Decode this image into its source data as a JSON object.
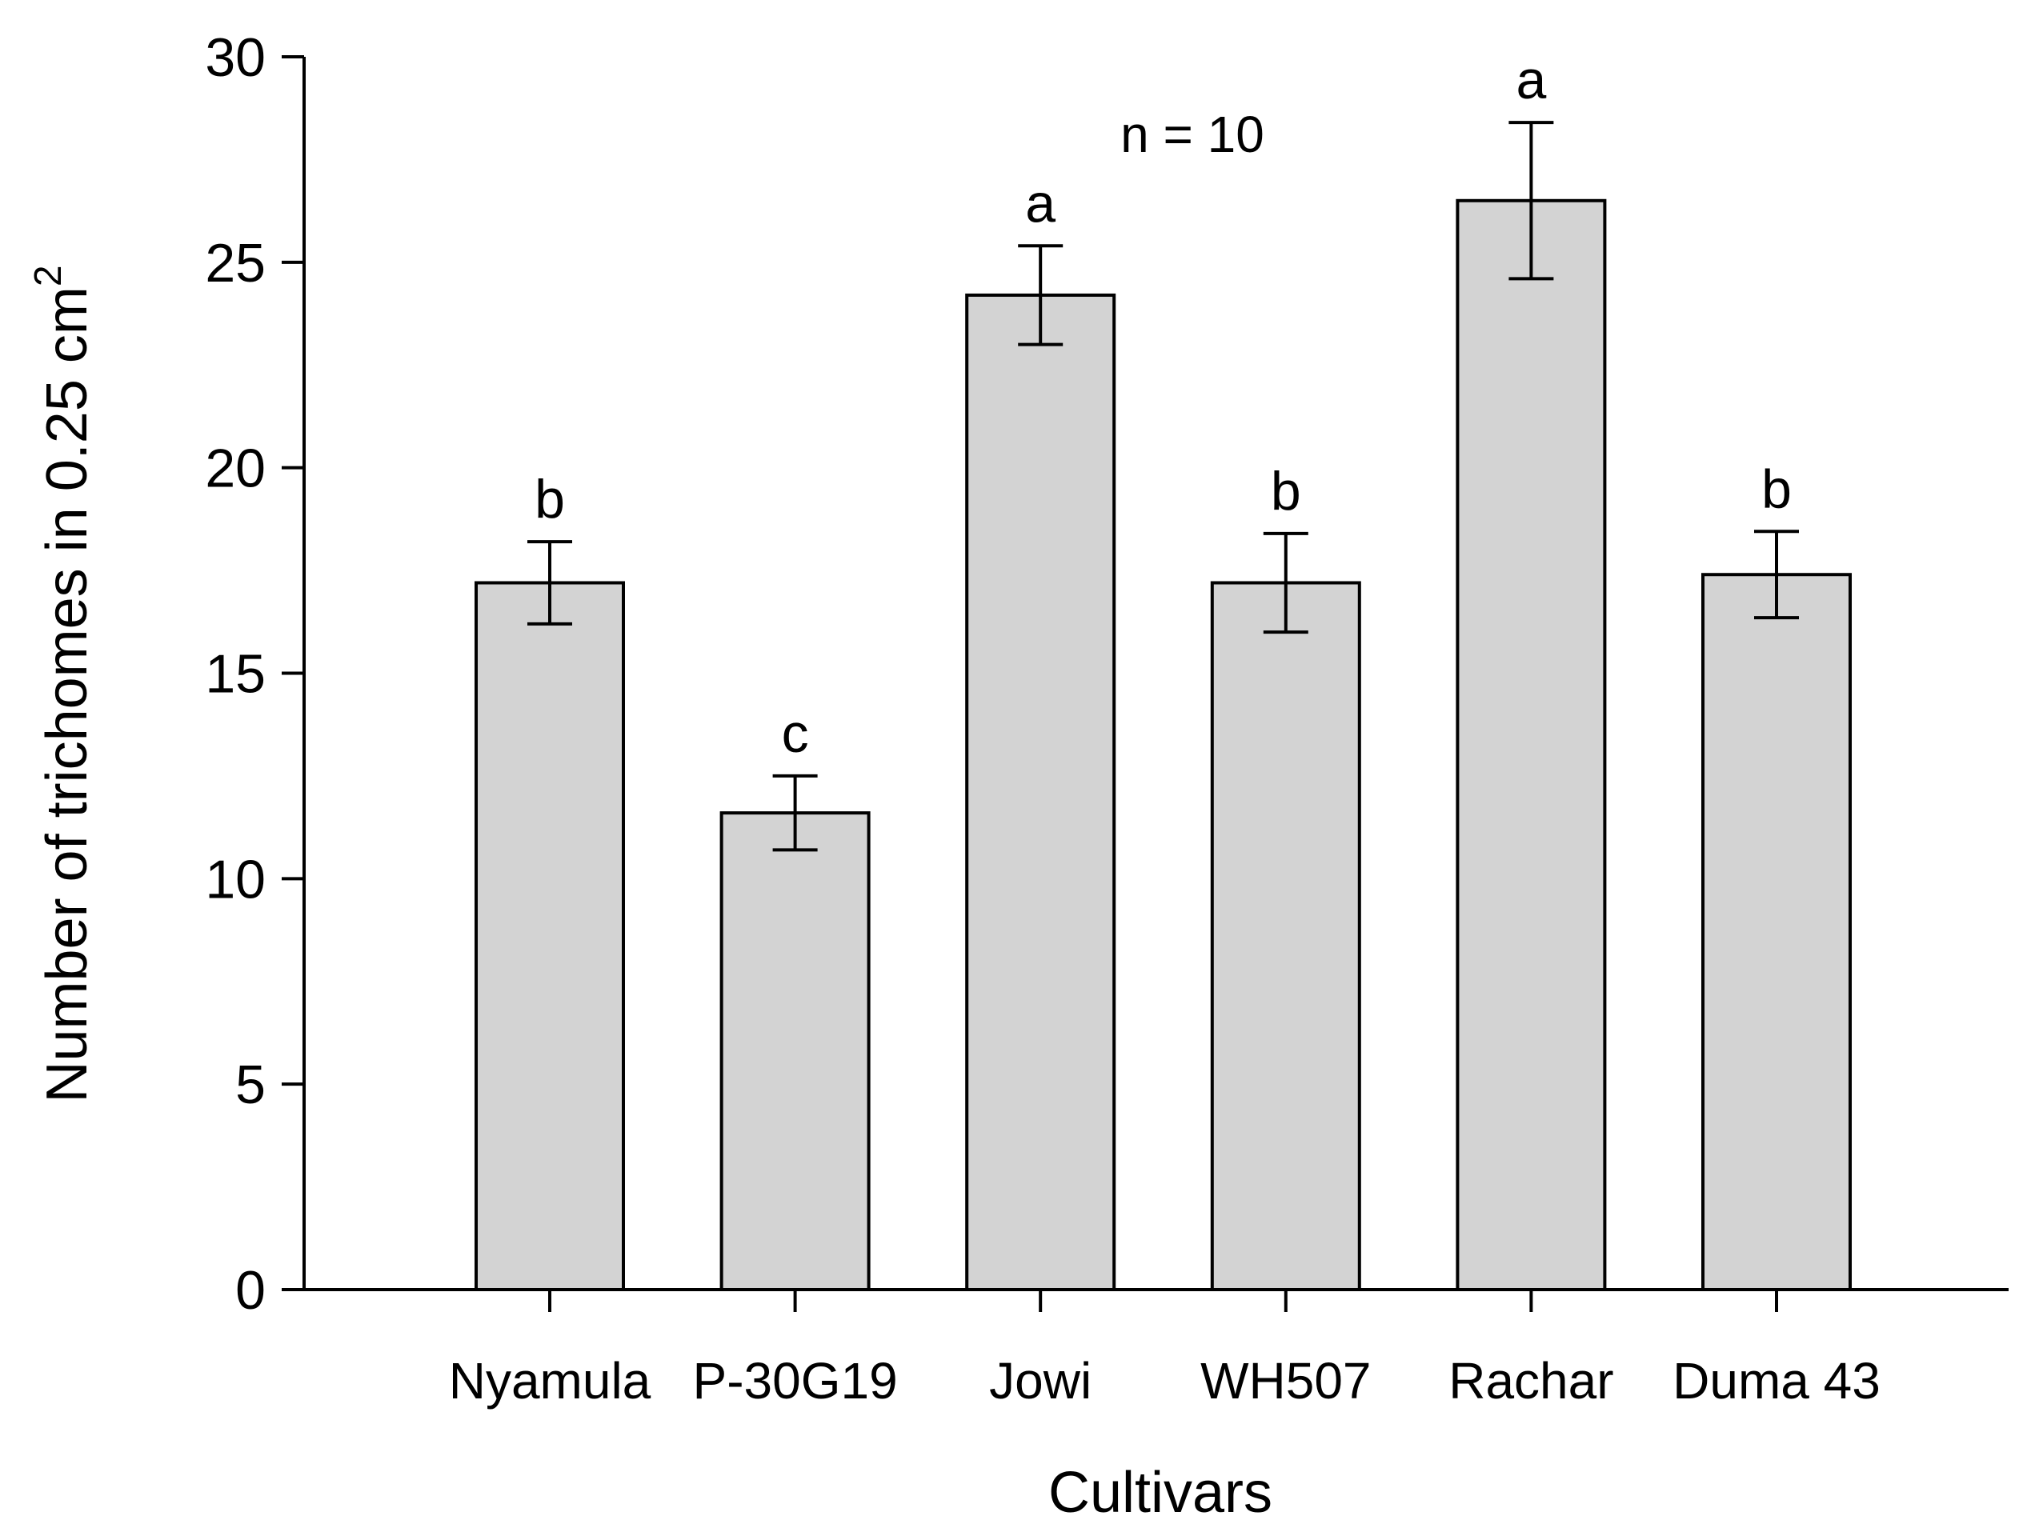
{
  "chart_data": {
    "type": "bar",
    "categories": [
      "Nyamula",
      "P-30G19",
      "Jowi",
      "WH507",
      "Rachar",
      "Duma 43"
    ],
    "values": [
      17.2,
      11.6,
      24.2,
      17.2,
      26.5,
      17.4
    ],
    "errors": [
      1.0,
      0.9,
      1.2,
      1.2,
      1.9,
      1.05
    ],
    "significance": [
      "b",
      "c",
      "a",
      "b",
      "a",
      "b"
    ],
    "xlabel": "Cultivars",
    "ylabel_main": "Number of trichomes in 0.25 cm",
    "ylabel_sup": "2",
    "annotation": "n = 10",
    "ylim": [
      0,
      30
    ],
    "yticks": [
      0,
      5,
      10,
      15,
      20,
      25,
      30
    ],
    "grid": false,
    "colors": {
      "bar_fill": "#d3d3d3",
      "bar_stroke": "#000000",
      "axis": "#000000"
    }
  }
}
